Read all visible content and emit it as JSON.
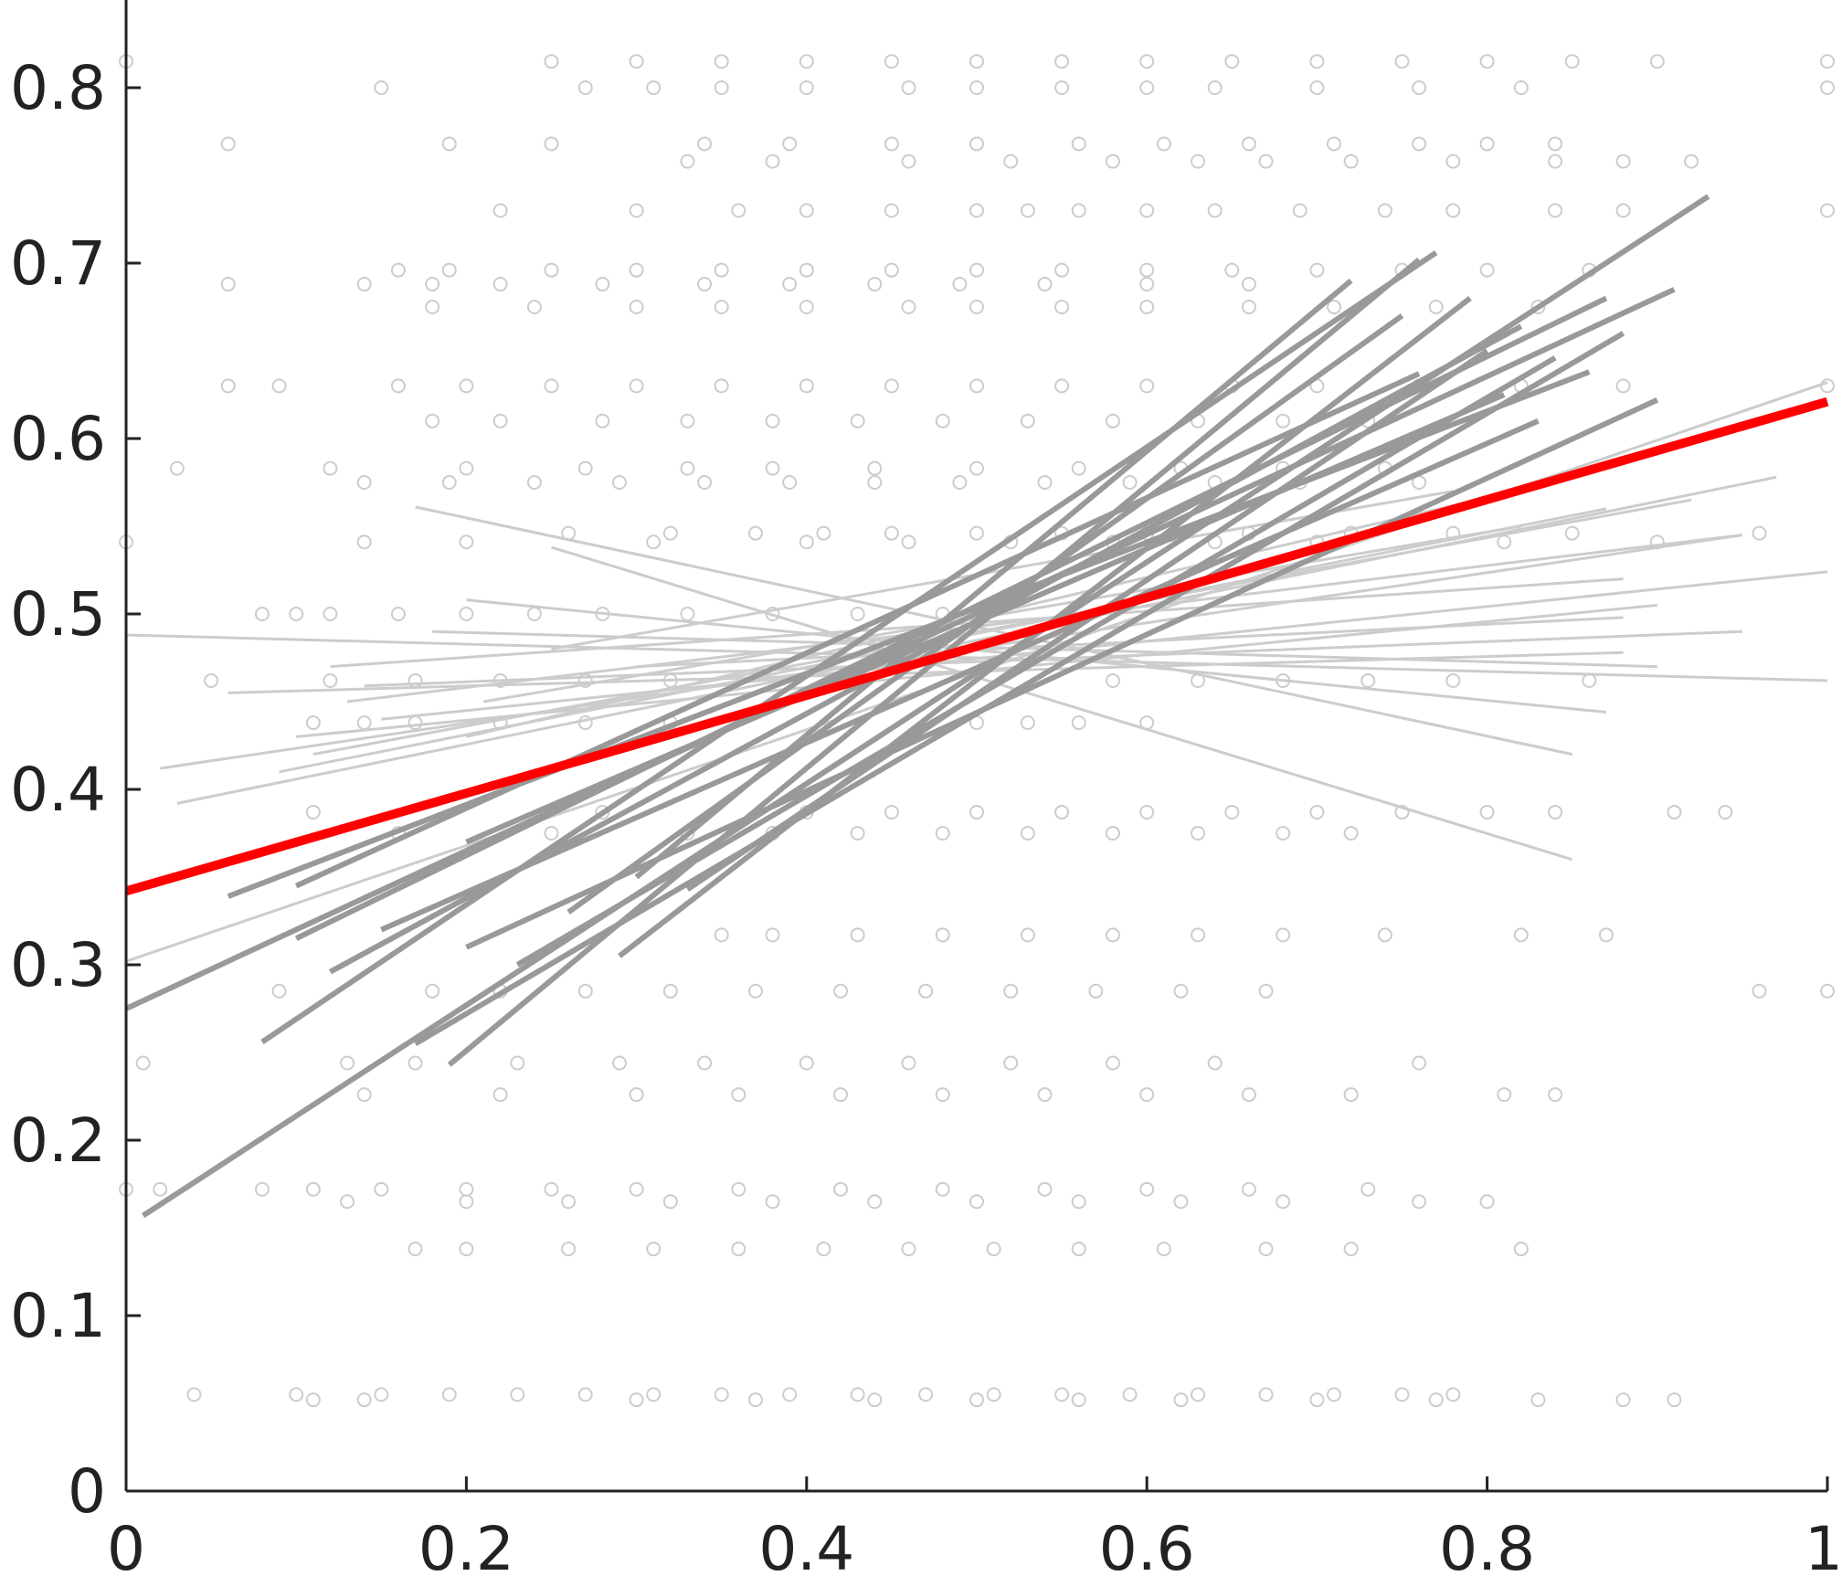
{
  "chart_data": {
    "type": "scatter",
    "title": "",
    "xlabel": "",
    "ylabel": "",
    "xlim": [
      0,
      1
    ],
    "ylim": [
      0,
      0.85
    ],
    "grid": false,
    "x_ticks": [
      0,
      0.2,
      0.4,
      0.6,
      0.8,
      1
    ],
    "x_tick_labels": [
      "0",
      "0.2",
      "0.4",
      "0.6",
      "0.8",
      "1"
    ],
    "y_ticks": [
      0,
      0.1,
      0.2,
      0.3,
      0.4,
      0.5,
      0.6,
      0.7,
      0.8
    ],
    "y_tick_labels": [
      "0",
      "0.1",
      "0.2",
      "0.3",
      "0.4",
      "0.5",
      "0.6",
      "0.7",
      "0.8"
    ],
    "scatter_rows": [
      {
        "y": 0.815,
        "xs": [
          0.0,
          0.25,
          0.3,
          0.35,
          0.4,
          0.45,
          0.5,
          0.55,
          0.6,
          0.65,
          0.7,
          0.75,
          0.8,
          0.85,
          0.9,
          1.0
        ]
      },
      {
        "y": 0.8,
        "xs": [
          0.15,
          0.27,
          0.31,
          0.35,
          0.4,
          0.46,
          0.5,
          0.55,
          0.6,
          0.64,
          0.7,
          0.76,
          0.82,
          1.0
        ]
      },
      {
        "y": 0.768,
        "xs": [
          0.06,
          0.19,
          0.25,
          0.34,
          0.39,
          0.45,
          0.5,
          0.56,
          0.61,
          0.66,
          0.71,
          0.76,
          0.8,
          0.84
        ]
      },
      {
        "y": 0.758,
        "xs": [
          0.33,
          0.38,
          0.46,
          0.52,
          0.58,
          0.63,
          0.67,
          0.72,
          0.78,
          0.84,
          0.88,
          0.92
        ]
      },
      {
        "y": 0.73,
        "xs": [
          0.22,
          0.3,
          0.36,
          0.4,
          0.45,
          0.5,
          0.53,
          0.56,
          0.6,
          0.64,
          0.69,
          0.74,
          0.78,
          0.84,
          0.88,
          1.0
        ]
      },
      {
        "y": 0.696,
        "xs": [
          0.16,
          0.19,
          0.25,
          0.3,
          0.35,
          0.4,
          0.45,
          0.5,
          0.55,
          0.6,
          0.65,
          0.7,
          0.75,
          0.8,
          0.86
        ]
      },
      {
        "y": 0.688,
        "xs": [
          0.06,
          0.14,
          0.18,
          0.22,
          0.28,
          0.34,
          0.39,
          0.44,
          0.49,
          0.54,
          0.6,
          0.66
        ]
      },
      {
        "y": 0.675,
        "xs": [
          0.18,
          0.24,
          0.3,
          0.35,
          0.4,
          0.46,
          0.5,
          0.55,
          0.6,
          0.66,
          0.71,
          0.77,
          0.83
        ]
      },
      {
        "y": 0.63,
        "xs": [
          0.06,
          0.09,
          0.16,
          0.2,
          0.25,
          0.3,
          0.35,
          0.4,
          0.45,
          0.5,
          0.55,
          0.6,
          0.65,
          0.7,
          0.76,
          0.82,
          0.88,
          1.0
        ]
      },
      {
        "y": 0.61,
        "xs": [
          0.18,
          0.22,
          0.28,
          0.33,
          0.38,
          0.43,
          0.48,
          0.53,
          0.58,
          0.63,
          0.68,
          0.73
        ]
      },
      {
        "y": 0.583,
        "xs": [
          0.03,
          0.12,
          0.2,
          0.27,
          0.33,
          0.38,
          0.44,
          0.5,
          0.56,
          0.62,
          0.68,
          0.74
        ]
      },
      {
        "y": 0.575,
        "xs": [
          0.14,
          0.19,
          0.24,
          0.29,
          0.34,
          0.39,
          0.44,
          0.49,
          0.54,
          0.59,
          0.64,
          0.69,
          0.76
        ]
      },
      {
        "y": 0.546,
        "xs": [
          0.26,
          0.32,
          0.37,
          0.41,
          0.45,
          0.5,
          0.55,
          0.6,
          0.66,
          0.72,
          0.78,
          0.85,
          0.96
        ]
      },
      {
        "y": 0.541,
        "xs": [
          0.0,
          0.14,
          0.2,
          0.31,
          0.4,
          0.46,
          0.52,
          0.58,
          0.64,
          0.7,
          0.81,
          0.9
        ]
      },
      {
        "y": 0.5,
        "xs": [
          0.08,
          0.1,
          0.12,
          0.16,
          0.2,
          0.24,
          0.28,
          0.33,
          0.38,
          0.43,
          0.48
        ]
      },
      {
        "y": 0.462,
        "xs": [
          0.05,
          0.12,
          0.17,
          0.22,
          0.27,
          0.32,
          0.58,
          0.63,
          0.68,
          0.73,
          0.78,
          0.86
        ]
      },
      {
        "y": 0.438,
        "xs": [
          0.11,
          0.14,
          0.17,
          0.22,
          0.27,
          0.32,
          0.5,
          0.53,
          0.56,
          0.6
        ]
      },
      {
        "y": 0.387,
        "xs": [
          0.11,
          0.28,
          0.4,
          0.45,
          0.5,
          0.55,
          0.6,
          0.65,
          0.7,
          0.75,
          0.8,
          0.84,
          0.91,
          0.94
        ]
      },
      {
        "y": 0.375,
        "xs": [
          0.16,
          0.25,
          0.33,
          0.38,
          0.43,
          0.48,
          0.53,
          0.58,
          0.63,
          0.68,
          0.72
        ]
      },
      {
        "y": 0.317,
        "xs": [
          0.35,
          0.38,
          0.43,
          0.48,
          0.53,
          0.58,
          0.63,
          0.68,
          0.74,
          0.82,
          0.87
        ]
      },
      {
        "y": 0.285,
        "xs": [
          0.09,
          0.18,
          0.22,
          0.27,
          0.32,
          0.37,
          0.42,
          0.47,
          0.52,
          0.57,
          0.62,
          0.67,
          1.0,
          0.96
        ]
      },
      {
        "y": 0.244,
        "xs": [
          0.01,
          0.13,
          0.17,
          0.23,
          0.29,
          0.34,
          0.4,
          0.46,
          0.52,
          0.58,
          0.64,
          0.76
        ]
      },
      {
        "y": 0.226,
        "xs": [
          0.14,
          0.22,
          0.3,
          0.36,
          0.42,
          0.48,
          0.54,
          0.6,
          0.66,
          0.72,
          0.81,
          0.84
        ]
      },
      {
        "y": 0.172,
        "xs": [
          0.0,
          0.02,
          0.08,
          0.11,
          0.15,
          0.2,
          0.25,
          0.3,
          0.36,
          0.42,
          0.48,
          0.54,
          0.6,
          0.66,
          0.73
        ]
      },
      {
        "y": 0.165,
        "xs": [
          0.13,
          0.2,
          0.26,
          0.32,
          0.38,
          0.44,
          0.5,
          0.56,
          0.62,
          0.68,
          0.76,
          0.8
        ]
      },
      {
        "y": 0.138,
        "xs": [
          0.17,
          0.2,
          0.26,
          0.31,
          0.36,
          0.41,
          0.46,
          0.51,
          0.56,
          0.61,
          0.67,
          0.72,
          0.82
        ]
      },
      {
        "y": 0.055,
        "xs": [
          0.04,
          0.1,
          0.15,
          0.19,
          0.23,
          0.27,
          0.31,
          0.35,
          0.39,
          0.43,
          0.47,
          0.51,
          0.55,
          0.59,
          0.63,
          0.67,
          0.71,
          0.75,
          0.78
        ]
      },
      {
        "y": 0.052,
        "xs": [
          0.11,
          0.14,
          0.3,
          0.37,
          0.44,
          0.5,
          0.56,
          0.62,
          0.7,
          0.77,
          0.83,
          0.88,
          0.91
        ]
      }
    ],
    "series": [
      {
        "kind": "overall-fit",
        "color": "#ff0000",
        "segments": [
          [
            0,
            0.342,
            1,
            0.621
          ]
        ]
      },
      {
        "kind": "steep-individual-fits",
        "color": "#999999",
        "segments": [
          [
            0.01,
            0.157,
            0.93,
            0.738
          ],
          [
            0.0,
            0.275,
            0.91,
            0.685
          ],
          [
            0.08,
            0.256,
            0.77,
            0.706
          ],
          [
            0.1,
            0.315,
            0.87,
            0.68
          ],
          [
            0.06,
            0.339,
            0.86,
            0.638
          ],
          [
            0.12,
            0.296,
            0.82,
            0.664
          ],
          [
            0.17,
            0.255,
            0.88,
            0.66
          ],
          [
            0.19,
            0.243,
            0.76,
            0.702
          ],
          [
            0.2,
            0.31,
            0.9,
            0.622
          ],
          [
            0.23,
            0.3,
            0.84,
            0.646
          ],
          [
            0.26,
            0.33,
            0.75,
            0.67
          ],
          [
            0.15,
            0.32,
            0.83,
            0.61
          ],
          [
            0.29,
            0.305,
            0.79,
            0.68
          ],
          [
            0.1,
            0.345,
            0.76,
            0.637
          ],
          [
            0.3,
            0.35,
            0.72,
            0.69
          ],
          [
            0.2,
            0.37,
            0.81,
            0.625
          ],
          [
            0.33,
            0.343,
            0.8,
            0.65
          ]
        ]
      },
      {
        "kind": "shallow-individual-fits",
        "color": "#cccccc",
        "segments": [
          [
            0.0,
            0.488,
            1.0,
            0.462
          ],
          [
            0.02,
            0.412,
            0.95,
            0.545
          ],
          [
            0.0,
            0.302,
            1.0,
            0.632
          ],
          [
            0.17,
            0.561,
            0.85,
            0.42
          ],
          [
            0.25,
            0.538,
            0.85,
            0.36
          ],
          [
            0.03,
            0.392,
            0.97,
            0.578
          ],
          [
            0.11,
            0.42,
            0.92,
            0.565
          ],
          [
            0.06,
            0.455,
            0.88,
            0.478
          ],
          [
            0.12,
            0.47,
            0.88,
            0.52
          ],
          [
            0.18,
            0.49,
            0.9,
            0.47
          ],
          [
            0.2,
            0.508,
            0.87,
            0.444
          ],
          [
            0.15,
            0.44,
            1.0,
            0.524
          ],
          [
            0.21,
            0.45,
            0.82,
            0.55
          ],
          [
            0.1,
            0.43,
            0.9,
            0.505
          ],
          [
            0.14,
            0.459,
            0.95,
            0.49
          ],
          [
            0.25,
            0.48,
            0.78,
            0.57
          ],
          [
            0.09,
            0.41,
            0.87,
            0.56
          ],
          [
            0.2,
            0.43,
            0.86,
            0.58
          ],
          [
            0.13,
            0.45,
            0.95,
            0.545
          ],
          [
            0.3,
            0.47,
            0.88,
            0.498
          ]
        ]
      }
    ]
  }
}
